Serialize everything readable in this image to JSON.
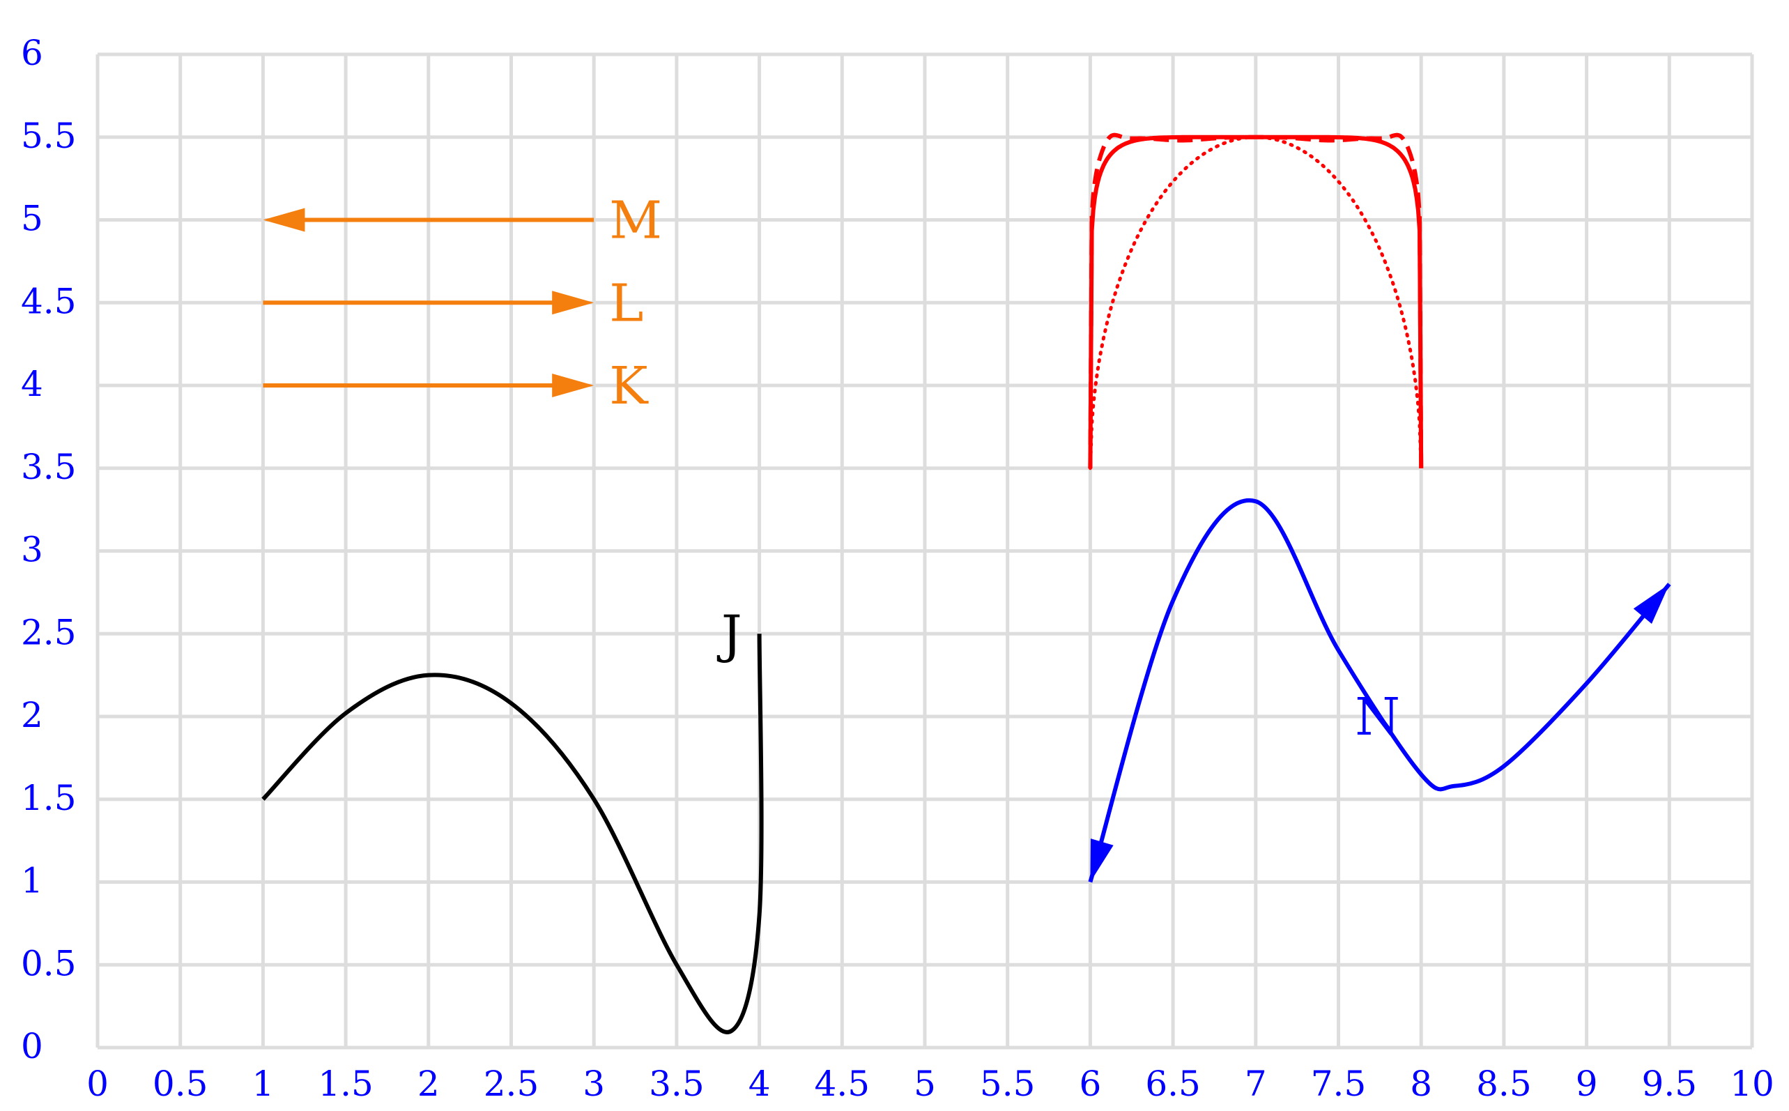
{
  "chart_data": {
    "type": "diagram",
    "title": "",
    "xlabel": "",
    "ylabel": "",
    "xlim": [
      0,
      10
    ],
    "ylim": [
      0,
      6
    ],
    "grid": true,
    "x_ticks": [
      "0",
      "0.5",
      "1",
      "1.5",
      "2",
      "2.5",
      "3",
      "3.5",
      "4",
      "4.5",
      "5",
      "5.5",
      "6",
      "6.5",
      "7",
      "7.5",
      "8",
      "8.5",
      "9",
      "9.5",
      "10"
    ],
    "y_ticks": [
      "0",
      "0.5",
      "1",
      "1.5",
      "2",
      "2.5",
      "3",
      "3.5",
      "4",
      "4.5",
      "5",
      "5.5",
      "6"
    ],
    "colors": {
      "grid": "#dddddd",
      "ticks": "#0000ff",
      "arrows": "#f57f0e",
      "curve_j": "#000000",
      "curve_n": "#0000ff",
      "curves_red": "#ff0000"
    },
    "labels": {
      "m": "M",
      "l": "L",
      "k": "K",
      "j": "J",
      "n": "N"
    },
    "arrows": [
      {
        "id": "M",
        "from": [
          3,
          5
        ],
        "to": [
          1,
          5
        ]
      },
      {
        "id": "L",
        "from": [
          1,
          4.5
        ],
        "to": [
          3,
          4.5
        ]
      },
      {
        "id": "K",
        "from": [
          1,
          4
        ],
        "to": [
          3,
          4
        ]
      }
    ],
    "curve_j": [
      [
        1,
        1.5
      ],
      [
        1.5,
        2.02
      ],
      [
        2,
        2.25
      ],
      [
        2.5,
        2.08
      ],
      [
        3,
        1.5
      ],
      [
        3.5,
        0.5
      ],
      [
        3.83,
        0.1
      ],
      [
        4,
        0.8
      ],
      [
        4,
        2.5
      ]
    ],
    "curve_n": [
      [
        6,
        1
      ],
      [
        6.5,
        2.7
      ],
      [
        7,
        3.3
      ],
      [
        7.5,
        2.4
      ],
      [
        8,
        1.65
      ],
      [
        8.2,
        1.58
      ],
      [
        8.5,
        1.7
      ],
      [
        9,
        2.2
      ],
      [
        9.5,
        2.8
      ]
    ],
    "red_curves": [
      {
        "style": "solid",
        "start": [
          6,
          3.5
        ],
        "end": [
          8,
          3.5
        ],
        "peak": [
          7,
          5.5
        ]
      },
      {
        "style": "dashed",
        "start": [
          6,
          3.5
        ],
        "end": [
          8,
          3.5
        ],
        "peak": [
          7,
          5.5
        ]
      },
      {
        "style": "dotted",
        "start": [
          6,
          3.5
        ],
        "end": [
          8,
          3.5
        ],
        "peak": [
          7,
          5.5
        ]
      }
    ]
  }
}
